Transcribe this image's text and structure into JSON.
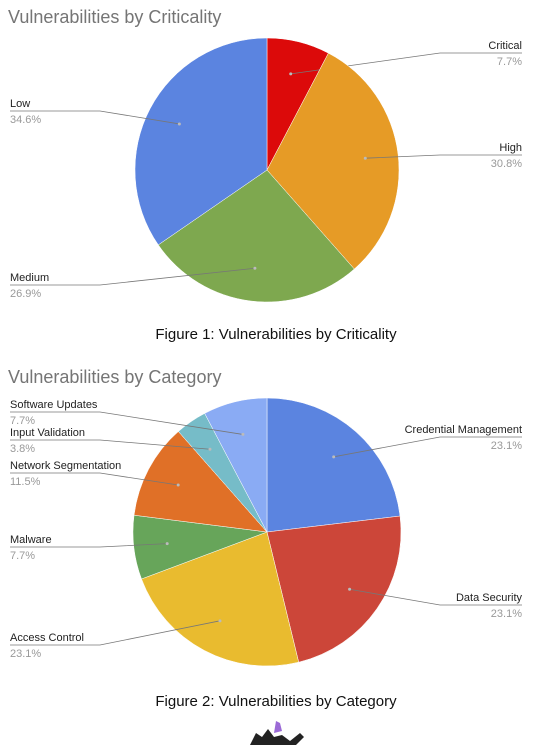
{
  "chart_data": [
    {
      "type": "pie",
      "title": "Vulnerabilities by Criticality",
      "caption": "Figure 1: Vulnerabilities by Criticality",
      "categories": [
        "Critical",
        "High",
        "Medium",
        "Low"
      ],
      "values": [
        7.7,
        30.8,
        26.9,
        34.6
      ],
      "value_labels": [
        "7.7%",
        "30.8%",
        "26.9%",
        "34.6%"
      ],
      "colors": [
        "#dc0a0a",
        "#e69b26",
        "#7ea84f",
        "#5b84e0"
      ]
    },
    {
      "type": "pie",
      "title": "Vulnerabilities by Category",
      "caption": "Figure 2: Vulnerabilities by Category",
      "categories": [
        "Credential Management",
        "Data Security",
        "Access Control",
        "Malware",
        "Network Segmentation",
        "Input Validation",
        "Software Updates"
      ],
      "values": [
        23.1,
        23.1,
        23.1,
        7.7,
        11.5,
        3.8,
        7.7
      ],
      "value_labels": [
        "23.1%",
        "23.1%",
        "23.1%",
        "7.7%",
        "11.5%",
        "3.8%",
        "7.7%"
      ],
      "colors": [
        "#5b84e0",
        "#cc4639",
        "#e9bb2f",
        "#67a55a",
        "#e07027",
        "#76bcc8",
        "#8aabf4"
      ]
    }
  ]
}
